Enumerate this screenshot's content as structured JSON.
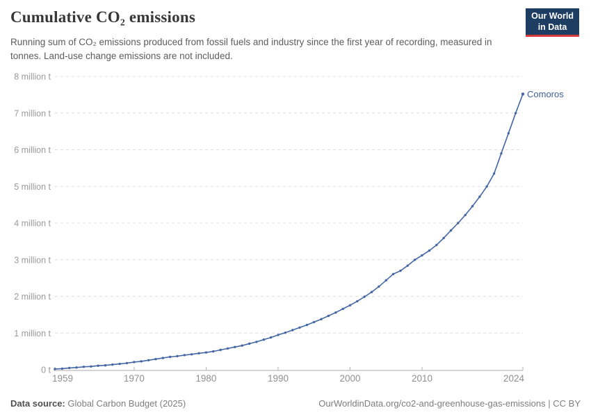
{
  "header": {
    "title": "Cumulative CO₂ emissions",
    "subtitle": "Running sum of CO₂ emissions produced from fossil fuels and industry since the first year of recording, measured in tonnes. Land-use change emissions are not included.",
    "logo": {
      "line1": "Our World",
      "line2": "in Data"
    }
  },
  "footer": {
    "source_label": "Data source:",
    "source_value": " Global Carbon Budget (2025)",
    "credit_link": "OurWorldinData.org/co2-and-greenhouse-gas-emissions",
    "license": " | CC BY"
  },
  "colors": {
    "line": "#4466a5",
    "entity_label": "#3a5e9c",
    "grid": "#dcdcdc",
    "axis_line": "#a8a8a8",
    "tick": "#b3b3b3",
    "y_axis_text": "#9a9a9a",
    "x_axis_text": "#8f8f8f",
    "logo_bg": "#1d3d63",
    "logo_red": "#d73c3c"
  },
  "chart_data": {
    "type": "line",
    "title": "Cumulative CO₂ emissions",
    "unit": "t",
    "grid": "horizontal dashed",
    "legend_position": "end-of-line label",
    "xlim": [
      1959,
      2024
    ],
    "ylim": [
      0,
      8
    ],
    "x_ticks": [
      1959,
      1970,
      1980,
      1990,
      2000,
      2010,
      2024
    ],
    "y_ticks": [
      {
        "value": 0,
        "label": "0 t"
      },
      {
        "value": 1,
        "label": "1 million t"
      },
      {
        "value": 2,
        "label": "2 million t"
      },
      {
        "value": 3,
        "label": "3 million t"
      },
      {
        "value": 4,
        "label": "4 million t"
      },
      {
        "value": 5,
        "label": "5 million t"
      },
      {
        "value": 6,
        "label": "6 million t"
      },
      {
        "value": 7,
        "label": "7 million t"
      },
      {
        "value": 8,
        "label": "8 million t"
      }
    ],
    "x": [
      1959,
      1960,
      1961,
      1962,
      1963,
      1964,
      1965,
      1966,
      1967,
      1968,
      1969,
      1970,
      1971,
      1972,
      1973,
      1974,
      1975,
      1976,
      1977,
      1978,
      1979,
      1980,
      1981,
      1982,
      1983,
      1984,
      1985,
      1986,
      1987,
      1988,
      1989,
      1990,
      1991,
      1992,
      1993,
      1994,
      1995,
      1996,
      1997,
      1998,
      1999,
      2000,
      2001,
      2002,
      2003,
      2004,
      2005,
      2006,
      2007,
      2008,
      2009,
      2010,
      2011,
      2012,
      2013,
      2014,
      2015,
      2016,
      2017,
      2018,
      2019,
      2020,
      2021,
      2022,
      2023,
      2024
    ],
    "series": [
      {
        "name": "Comoros",
        "unit": "million t",
        "values": [
          0.02,
          0.03,
          0.05,
          0.06,
          0.08,
          0.09,
          0.11,
          0.12,
          0.14,
          0.16,
          0.18,
          0.21,
          0.23,
          0.26,
          0.29,
          0.32,
          0.35,
          0.37,
          0.4,
          0.42,
          0.45,
          0.47,
          0.5,
          0.54,
          0.58,
          0.62,
          0.66,
          0.71,
          0.76,
          0.82,
          0.88,
          0.95,
          1.01,
          1.08,
          1.15,
          1.22,
          1.3,
          1.38,
          1.47,
          1.56,
          1.66,
          1.76,
          1.87,
          1.99,
          2.12,
          2.27,
          2.44,
          2.61,
          2.7,
          2.84,
          3.0,
          3.12,
          3.25,
          3.4,
          3.59,
          3.8,
          4.0,
          4.22,
          4.46,
          4.72,
          5.0,
          5.35,
          5.9,
          6.45,
          7.0,
          7.52
        ]
      }
    ]
  }
}
